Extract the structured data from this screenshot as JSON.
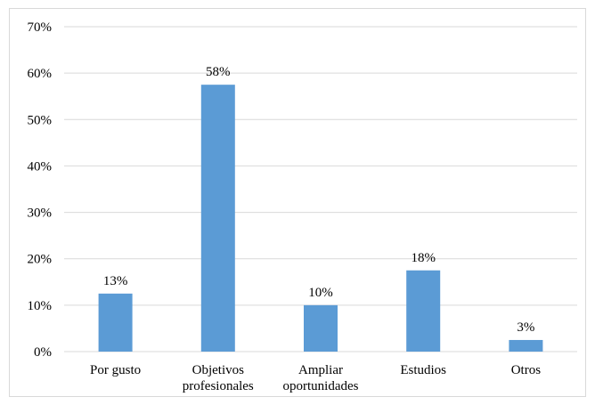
{
  "chart_data": {
    "type": "bar",
    "categories": [
      [
        "Por gusto"
      ],
      [
        "Objetivos",
        "profesionales"
      ],
      [
        "Ampliar",
        "oportunidades"
      ],
      [
        "Estudios"
      ],
      [
        "Otros"
      ]
    ],
    "values": [
      12.5,
      57.5,
      10,
      17.5,
      2.5
    ],
    "data_labels": [
      "13%",
      "58%",
      "10%",
      "18%",
      "3%"
    ],
    "yticks": [
      "0%",
      "10%",
      "20%",
      "30%",
      "40%",
      "50%",
      "60%",
      "70%"
    ],
    "ylim": [
      0,
      70
    ],
    "ytick_step": 10,
    "grid": true,
    "legend": "none",
    "bar_color": "#5b9bd5",
    "grid_color": "#d9d9d9"
  }
}
